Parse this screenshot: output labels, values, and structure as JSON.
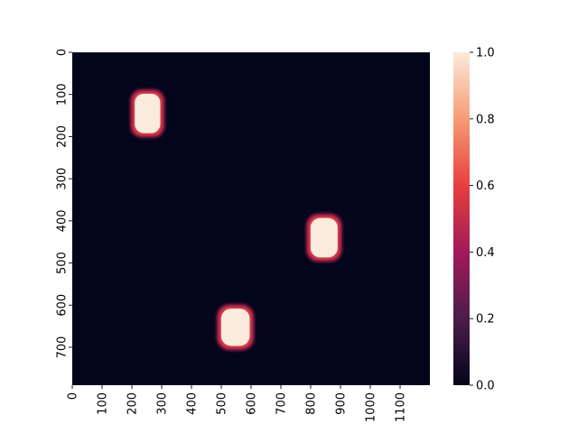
{
  "chart_data": {
    "type": "heatmap",
    "title": "",
    "xlabel": "",
    "ylabel": "",
    "x_range": [
      0,
      1200
    ],
    "y_range": [
      0,
      790
    ],
    "y_inverted": true,
    "x_ticks": [
      "0",
      "100",
      "200",
      "300",
      "400",
      "500",
      "600",
      "700",
      "800",
      "900",
      "1000",
      "1100"
    ],
    "x_tick_values": [
      0,
      100,
      200,
      300,
      400,
      500,
      600,
      700,
      800,
      900,
      1000,
      1100
    ],
    "y_ticks": [
      "0",
      "100",
      "200",
      "300",
      "400",
      "500",
      "600",
      "700"
    ],
    "y_tick_values": [
      0,
      100,
      200,
      300,
      400,
      500,
      600,
      700
    ],
    "background_value": 0.0,
    "blobs": [
      {
        "x0": 205,
        "x1": 300,
        "y0": 95,
        "y1": 195,
        "value": 1.0
      },
      {
        "x0": 795,
        "x1": 895,
        "y0": 390,
        "y1": 490,
        "value": 1.0
      },
      {
        "x0": 495,
        "x1": 600,
        "y0": 605,
        "y1": 700,
        "value": 1.0
      }
    ],
    "colorbar": {
      "min": 0.0,
      "max": 1.0,
      "ticks": [
        "0.0",
        "0.2",
        "0.4",
        "0.6",
        "0.8",
        "1.0"
      ],
      "tick_values": [
        0.0,
        0.2,
        0.4,
        0.6,
        0.8,
        1.0
      ],
      "colormap": "rocket",
      "colors": [
        "#03051a",
        "#4c1d4b",
        "#a11a5b",
        "#e83f3f",
        "#f69c73",
        "#faebdd"
      ]
    }
  }
}
